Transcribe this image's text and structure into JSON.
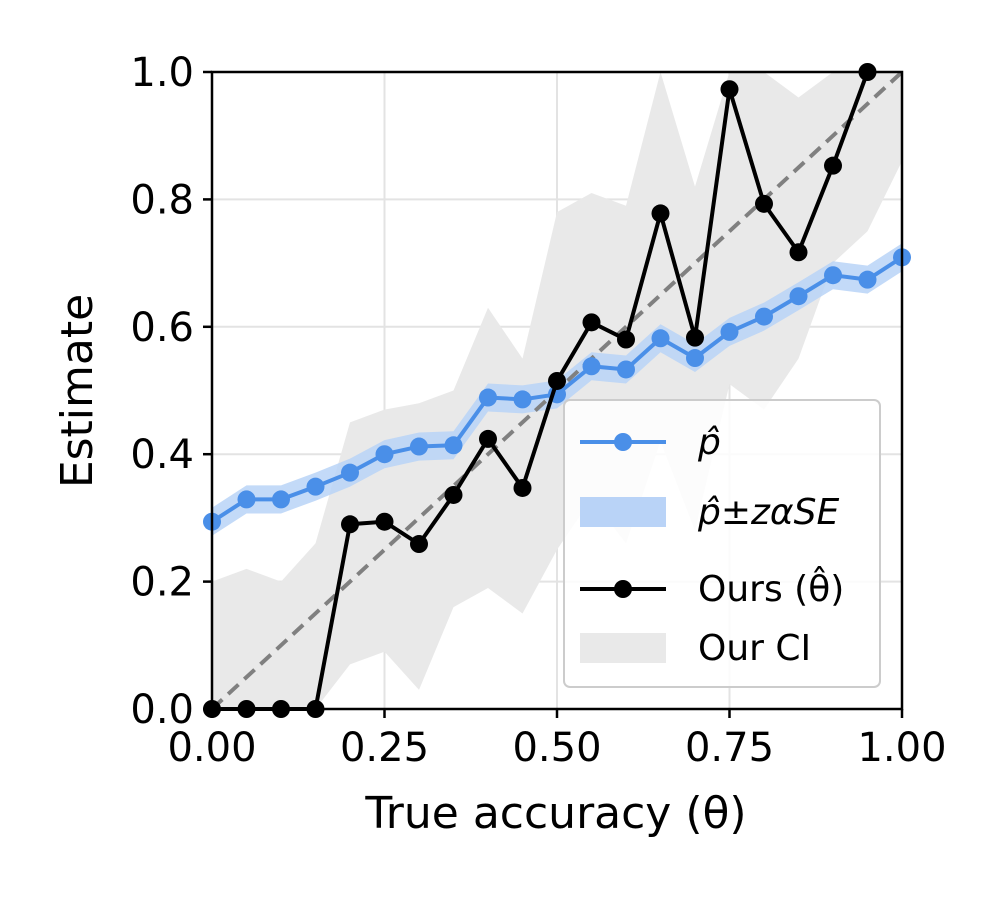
{
  "chart_data": {
    "type": "line",
    "xlabel": "True accuracy (θ)",
    "ylabel": "Estimate",
    "xlim": [
      0,
      1
    ],
    "ylim": [
      0,
      1
    ],
    "x_ticks": [
      "0.00",
      "0.25",
      "0.50",
      "0.75",
      "1.00"
    ],
    "y_ticks": [
      "0.0",
      "0.2",
      "0.4",
      "0.6",
      "0.8",
      "1.0"
    ],
    "grid": true,
    "legend_position": "lower-right",
    "x": [
      0.0,
      0.05,
      0.1,
      0.15,
      0.2,
      0.25,
      0.3,
      0.35,
      0.4,
      0.45,
      0.5,
      0.55,
      0.6,
      0.65,
      0.7,
      0.75,
      0.8,
      0.85,
      0.9,
      0.95,
      1.0
    ],
    "series": [
      {
        "name": "p̂",
        "color": "#4a8fe8",
        "values": [
          0.294,
          0.329,
          0.329,
          0.349,
          0.371,
          0.4,
          0.412,
          0.414,
          0.489,
          0.486,
          0.494,
          0.538,
          0.533,
          0.582,
          0.551,
          0.592,
          0.616,
          0.648,
          0.681,
          0.674,
          0.709
        ]
      },
      {
        "name": "Ours (θ̂)",
        "color": "#000000",
        "values": [
          0.0,
          0.0,
          0.0,
          0.0,
          0.29,
          0.294,
          0.259,
          0.336,
          0.424,
          0.347,
          0.515,
          0.607,
          0.58,
          0.778,
          0.583,
          0.973,
          0.793,
          0.717,
          0.853,
          1.0,
          null
        ]
      }
    ],
    "bands": [
      {
        "name": "p̂±z_αSE",
        "color": "#b9d3f7",
        "lower": [
          0.272,
          0.307,
          0.307,
          0.327,
          0.349,
          0.378,
          0.39,
          0.392,
          0.467,
          0.464,
          0.472,
          0.516,
          0.511,
          0.56,
          0.529,
          0.57,
          0.594,
          0.626,
          0.659,
          0.652,
          0.687
        ],
        "upper": [
          0.316,
          0.351,
          0.351,
          0.371,
          0.393,
          0.422,
          0.434,
          0.436,
          0.511,
          0.508,
          0.516,
          0.56,
          0.555,
          0.604,
          0.573,
          0.614,
          0.638,
          0.67,
          0.703,
          0.696,
          0.731
        ]
      },
      {
        "name": "Our CI",
        "color": "#e9e9e9",
        "lower": [
          0.0,
          0.0,
          0.0,
          0.0,
          0.07,
          0.09,
          0.03,
          0.16,
          0.19,
          0.15,
          0.25,
          0.33,
          0.26,
          0.42,
          0.28,
          0.51,
          0.47,
          0.55,
          0.7,
          0.75,
          0.86
        ],
        "upper": [
          0.2,
          0.22,
          0.2,
          0.26,
          0.45,
          0.47,
          0.48,
          0.5,
          0.63,
          0.55,
          0.78,
          0.81,
          0.79,
          1.0,
          0.82,
          1.0,
          1.0,
          0.96,
          1.0,
          1.0,
          1.0
        ]
      }
    ]
  },
  "legend": {
    "items": [
      {
        "label": "p̂",
        "kind": "line-marker",
        "color": "#4a8fe8"
      },
      {
        "label": "p̂±zαSE",
        "kind": "band",
        "color": "#b9d3f7"
      },
      {
        "label": "Ours (θ̂)",
        "kind": "line-marker",
        "color": "#000000"
      },
      {
        "label": "Our CI",
        "kind": "band",
        "color": "#e9e9e9"
      }
    ]
  },
  "reference_line": {
    "color": "#808080",
    "style": "dashed"
  }
}
